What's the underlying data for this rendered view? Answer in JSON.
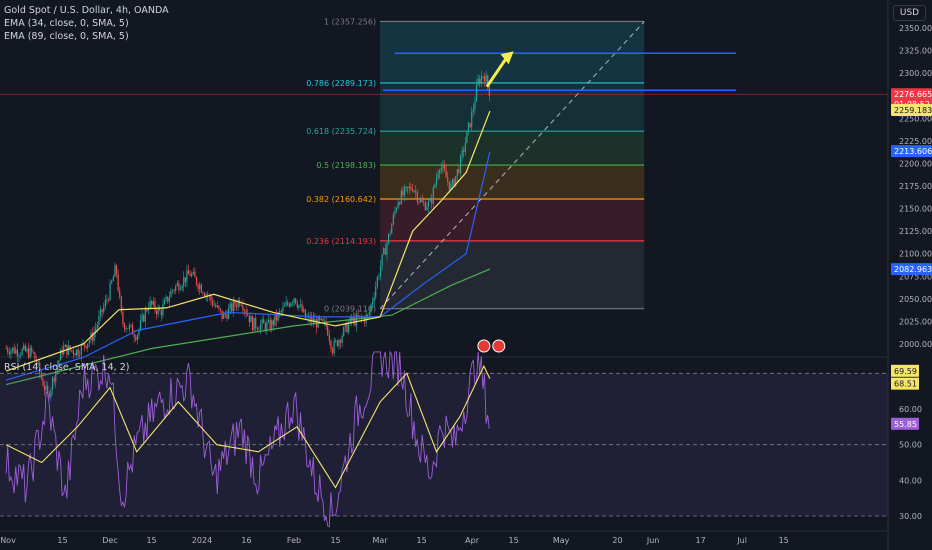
{
  "legend": {
    "title": "Gold Spot / U.S. Dollar, 4h, OANDA",
    "ema1": "EMA (34, close, 0, SMA, 5)",
    "ema2": "EMA (89, close, 0, SMA, 5)",
    "rsi": "RSI (14, close, SMA, 14, 2)",
    "currency": "USD"
  },
  "colors": {
    "background": "#131722",
    "up": "#26a69a",
    "down": "#ef5350",
    "ema34": "#f5e56b",
    "ema89": "#2962ff",
    "rsi": "#9c5fd6",
    "rsi_ma": "#f5e56b",
    "hline": "#2962ff",
    "arrow": "#f4ef4a"
  },
  "chart_data": [
    {
      "type": "candlestick",
      "symbol": "Gold Spot / U.S. Dollar",
      "timeframe": "4h",
      "y_axis": {
        "range": [
          1988,
          2372
        ],
        "ticks": [
          2000,
          2025,
          2050,
          2075,
          2100,
          2125,
          2150,
          2175,
          2200,
          2225,
          2250,
          2275,
          2300,
          2325,
          2350
        ],
        "tick_labels": [
          "2000.00",
          "2025.00",
          "2050.00",
          "2075.00",
          "2100.00",
          "2125.00",
          "2150.00",
          "2175.00",
          "2200.00",
          "2225.00",
          "2250.00",
          "2275.00",
          "2300.00",
          "2325.00",
          "2350.00"
        ]
      },
      "x_axis_labels": [
        "Nov",
        "15",
        "Dec",
        "15",
        "2024",
        "16",
        "Feb",
        "15",
        "Mar",
        "15",
        "Apr",
        "15",
        "May",
        "20",
        "Jun",
        "17",
        "Jul",
        "15"
      ],
      "price_path": [
        {
          "t": "2023-10-27",
          "p": 1995
        },
        {
          "t": "2023-11-05",
          "p": 1990
        },
        {
          "t": "2023-11-10",
          "p": 1942
        },
        {
          "t": "2023-11-15",
          "p": 1995
        },
        {
          "t": "2023-11-20",
          "p": 1992
        },
        {
          "t": "2023-11-25",
          "p": 2008
        },
        {
          "t": "2023-11-30",
          "p": 2050
        },
        {
          "t": "2023-12-01",
          "p": 2060
        },
        {
          "t": "2023-12-03",
          "p": 2085
        },
        {
          "t": "2023-12-05",
          "p": 2025
        },
        {
          "t": "2023-12-10",
          "p": 2010
        },
        {
          "t": "2023-12-14",
          "p": 2045
        },
        {
          "t": "2023-12-18",
          "p": 2035
        },
        {
          "t": "2023-12-22",
          "p": 2060
        },
        {
          "t": "2023-12-28",
          "p": 2078
        },
        {
          "t": "2024-01-02",
          "p": 2058
        },
        {
          "t": "2024-01-08",
          "p": 2030
        },
        {
          "t": "2024-01-14",
          "p": 2050
        },
        {
          "t": "2024-01-18",
          "p": 2022
        },
        {
          "t": "2024-01-24",
          "p": 2020
        },
        {
          "t": "2024-02-01",
          "p": 2053
        },
        {
          "t": "2024-02-05",
          "p": 2028
        },
        {
          "t": "2024-02-12",
          "p": 2020
        },
        {
          "t": "2024-02-14",
          "p": 1995
        },
        {
          "t": "2024-02-20",
          "p": 2025
        },
        {
          "t": "2024-02-26",
          "p": 2030
        },
        {
          "t": "2024-03-01",
          "p": 2085
        },
        {
          "t": "2024-03-04",
          "p": 2120
        },
        {
          "t": "2024-03-07",
          "p": 2160
        },
        {
          "t": "2024-03-12",
          "p": 2175
        },
        {
          "t": "2024-03-15",
          "p": 2155
        },
        {
          "t": "2024-03-18",
          "p": 2155
        },
        {
          "t": "2024-03-21",
          "p": 2200
        },
        {
          "t": "2024-03-25",
          "p": 2172
        },
        {
          "t": "2024-03-28",
          "p": 2200
        },
        {
          "t": "2024-04-01",
          "p": 2255
        },
        {
          "t": "2024-04-03",
          "p": 2290
        },
        {
          "t": "2024-04-05",
          "p": 2300
        },
        {
          "t": "2024-04-07",
          "p": 2278
        }
      ],
      "fibonacci": {
        "levels": [
          {
            "ratio": "1",
            "price": 2357.256,
            "label": "1 (2357.256)",
            "color": "#787b86"
          },
          {
            "ratio": "0.786",
            "price": 2289.173,
            "label": "0.786 (2289.173)",
            "color": "#26c6da"
          },
          {
            "ratio": "0.618",
            "price": 2235.724,
            "label": "0.618 (2235.724)",
            "color": "#26a69a"
          },
          {
            "ratio": "0.5",
            "price": 2198.183,
            "label": "0.5 (2198.183)",
            "color": "#4caf50"
          },
          {
            "ratio": "0.382",
            "price": 2160.642,
            "label": "0.382 (2160.642)",
            "color": "#ff9800"
          },
          {
            "ratio": "0.236",
            "price": 2114.193,
            "label": "0.236 (2114.193)",
            "color": "#f23645"
          },
          {
            "ratio": "0",
            "price": 2039.11,
            "label": "0 (2039.110)",
            "color": "#787b86"
          }
        ],
        "start_date": "2024-03-01",
        "end_date": "2024-05-29"
      },
      "horizontal_lines": [
        {
          "from": "2024-03-06",
          "to": "2024-06-29",
          "price": 2322
        },
        {
          "from": "2024-03-02",
          "to": "2024-06-29",
          "price": 2281
        }
      ],
      "trend_line": {
        "from": {
          "t": "2024-03-01",
          "p": 2039
        },
        "to": {
          "t": "2024-05-29",
          "p": 2357
        }
      },
      "ema34_path": [
        {
          "t": "2023-10-27",
          "p": 1970
        },
        {
          "t": "2023-11-22",
          "p": 2000
        },
        {
          "t": "2023-12-04",
          "p": 2038
        },
        {
          "t": "2023-12-20",
          "p": 2040
        },
        {
          "t": "2024-01-05",
          "p": 2055
        },
        {
          "t": "2024-01-25",
          "p": 2035
        },
        {
          "t": "2024-02-15",
          "p": 2020
        },
        {
          "t": "2024-03-01",
          "p": 2030
        },
        {
          "t": "2024-03-12",
          "p": 2125
        },
        {
          "t": "2024-03-22",
          "p": 2160
        },
        {
          "t": "2024-03-30",
          "p": 2190
        },
        {
          "t": "2024-04-07",
          "p": 2258
        }
      ],
      "ema89_path": [
        {
          "t": "2023-10-27",
          "p": 1960
        },
        {
          "t": "2023-11-22",
          "p": 1985
        },
        {
          "t": "2023-12-10",
          "p": 2015
        },
        {
          "t": "2024-01-10",
          "p": 2035
        },
        {
          "t": "2024-02-10",
          "p": 2030
        },
        {
          "t": "2024-03-01",
          "p": 2030
        },
        {
          "t": "2024-03-15",
          "p": 2065
        },
        {
          "t": "2024-03-30",
          "p": 2100
        },
        {
          "t": "2024-04-07",
          "p": 2213
        }
      ],
      "ema_slow_path": [
        {
          "t": "2023-10-27",
          "p": 1955
        },
        {
          "t": "2023-12-15",
          "p": 1995
        },
        {
          "t": "2024-02-01",
          "p": 2020
        },
        {
          "t": "2024-03-05",
          "p": 2032
        },
        {
          "t": "2024-03-25",
          "p": 2065
        },
        {
          "t": "2024-04-07",
          "p": 2083
        }
      ],
      "price_labels": [
        {
          "text": "2276.665",
          "price": 2276.665,
          "bg": "#f23645",
          "fg": "#ffffff"
        },
        {
          "text": "01:08:52",
          "price": 2268,
          "bg": "#f23645",
          "fg": "#ffffff"
        },
        {
          "text": "2259.183",
          "price": 2259.183,
          "bg": "#f5e56b",
          "fg": "#131722"
        },
        {
          "text": "2213.606",
          "price": 2213.606,
          "bg": "#2962ff",
          "fg": "#ffffff"
        },
        {
          "text": "2082.963",
          "price": 2082.963,
          "bg": "#2962ff",
          "fg": "#ffffff"
        }
      ]
    },
    {
      "type": "line",
      "title": "RSI (14, close, SMA, 14, 2)",
      "y_axis": {
        "range": [
          27,
          76
        ],
        "ticks": [
          30,
          40,
          50,
          60,
          70
        ],
        "tick_labels": [
          "30.00",
          "40.00",
          "50.00",
          "60.00",
          ""
        ]
      },
      "bands": [
        70,
        50,
        30
      ],
      "series": [
        {
          "name": "RSI",
          "last": 55.85,
          "last_label": "55.85",
          "path": [
            {
              "t": "2023-10-27",
              "v": 45
            },
            {
              "t": "2023-11-03",
              "v": 38
            },
            {
              "t": "2023-11-10",
              "v": 62
            },
            {
              "t": "2023-11-16",
              "v": 35
            },
            {
              "t": "2023-11-22",
              "v": 68
            },
            {
              "t": "2023-12-01",
              "v": 72
            },
            {
              "t": "2023-12-05",
              "v": 35
            },
            {
              "t": "2023-12-10",
              "v": 50
            },
            {
              "t": "2023-12-18",
              "v": 62
            },
            {
              "t": "2023-12-28",
              "v": 68
            },
            {
              "t": "2024-01-05",
              "v": 40
            },
            {
              "t": "2024-01-14",
              "v": 55
            },
            {
              "t": "2024-01-20",
              "v": 40
            },
            {
              "t": "2024-02-01",
              "v": 62
            },
            {
              "t": "2024-02-08",
              "v": 40
            },
            {
              "t": "2024-02-14",
              "v": 30
            },
            {
              "t": "2024-02-22",
              "v": 58
            },
            {
              "t": "2024-03-01",
              "v": 75
            },
            {
              "t": "2024-03-08",
              "v": 72
            },
            {
              "t": "2024-03-14",
              "v": 50
            },
            {
              "t": "2024-03-18",
              "v": 42
            },
            {
              "t": "2024-03-22",
              "v": 56
            },
            {
              "t": "2024-03-26",
              "v": 50
            },
            {
              "t": "2024-04-03",
              "v": 75
            },
            {
              "t": "2024-04-07",
              "v": 55.85
            }
          ]
        },
        {
          "name": "RSI MA",
          "last": 68.51,
          "last_label": "68.51",
          "path": [
            {
              "t": "2023-10-27",
              "v": 50
            },
            {
              "t": "2023-11-08",
              "v": 45
            },
            {
              "t": "2023-11-20",
              "v": 55
            },
            {
              "t": "2023-12-01",
              "v": 66
            },
            {
              "t": "2023-12-10",
              "v": 48
            },
            {
              "t": "2023-12-24",
              "v": 62
            },
            {
              "t": "2024-01-06",
              "v": 50
            },
            {
              "t": "2024-01-20",
              "v": 48
            },
            {
              "t": "2024-02-02",
              "v": 55
            },
            {
              "t": "2024-02-15",
              "v": 38
            },
            {
              "t": "2024-03-01",
              "v": 62
            },
            {
              "t": "2024-03-10",
              "v": 70
            },
            {
              "t": "2024-03-20",
              "v": 48
            },
            {
              "t": "2024-03-28",
              "v": 58
            },
            {
              "t": "2024-04-05",
              "v": 72
            },
            {
              "t": "2024-04-07",
              "v": 68.51
            }
          ]
        }
      ],
      "extra_label": {
        "text": "69.59",
        "value": 69.59
      }
    }
  ]
}
